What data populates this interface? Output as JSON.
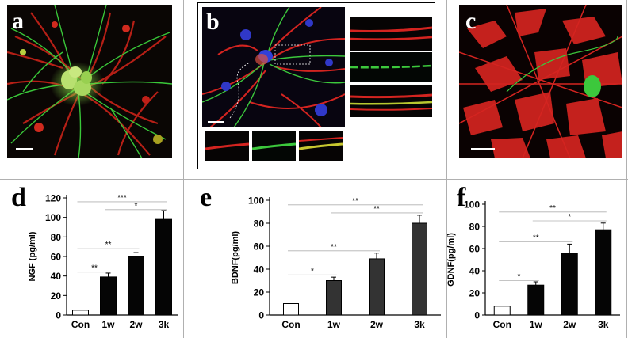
{
  "panels": {
    "a": {
      "letter": "a"
    },
    "b": {
      "letter": "b"
    },
    "c": {
      "letter": "c"
    }
  },
  "colors": {
    "neuron_green": "#3cc83c",
    "glia_red": "#e0201e",
    "nucleus_blue": "#3038d8",
    "bar_black": "#050505",
    "bar_grey": "#333333"
  },
  "chart_data": [
    {
      "letter": "d",
      "type": "bar",
      "ylabel": "NGF (pg/ml)",
      "categories": [
        "Con",
        "1w",
        "2w",
        "3k"
      ],
      "values": [
        5,
        39,
        60,
        98
      ],
      "errors": [
        0.5,
        4,
        4,
        9
      ],
      "ylim": [
        0,
        120
      ],
      "yticks": [
        0,
        20,
        40,
        60,
        80,
        100,
        120
      ],
      "bar_fill": [
        "#ffffff",
        "#050505",
        "#050505",
        "#050505"
      ],
      "significance": [
        {
          "from": 0,
          "to": 1,
          "label": "**"
        },
        {
          "from": 0,
          "to": 2,
          "label": "**"
        },
        {
          "from": 1,
          "to": 3,
          "label": "*"
        },
        {
          "from": 0,
          "to": 3,
          "label": "***"
        }
      ],
      "sig_levels": [
        44,
        68,
        108,
        116
      ]
    },
    {
      "letter": "e",
      "type": "bar",
      "ylabel": "BDNF(pg/ml)",
      "categories": [
        "Con",
        "1w",
        "2w",
        "3k"
      ],
      "values": [
        10,
        30,
        49,
        80
      ],
      "errors": [
        0.5,
        3,
        5,
        7
      ],
      "ylim": [
        0,
        100
      ],
      "yticks": [
        0,
        20,
        40,
        60,
        80,
        100
      ],
      "bar_fill": [
        "#ffffff",
        "#333333",
        "#333333",
        "#333333"
      ],
      "significance": [
        {
          "from": 0,
          "to": 1,
          "label": "*"
        },
        {
          "from": 0,
          "to": 2,
          "label": "**"
        },
        {
          "from": 1,
          "to": 3,
          "label": "**"
        },
        {
          "from": 0,
          "to": 3,
          "label": "**"
        }
      ],
      "sig_levels": [
        35,
        56,
        89,
        96
      ]
    },
    {
      "letter": "f",
      "type": "bar",
      "ylabel": "GDNF(pg/ml)",
      "categories": [
        "Con",
        "1w",
        "2w",
        "3k"
      ],
      "values": [
        8,
        27,
        56,
        77
      ],
      "errors": [
        0.5,
        3,
        8,
        6
      ],
      "ylim": [
        0,
        100
      ],
      "yticks": [
        0,
        20,
        40,
        60,
        80,
        100
      ],
      "bar_fill": [
        "#ffffff",
        "#050505",
        "#050505",
        "#050505"
      ],
      "significance": [
        {
          "from": 0,
          "to": 1,
          "label": "*"
        },
        {
          "from": 0,
          "to": 2,
          "label": "**"
        },
        {
          "from": 1,
          "to": 3,
          "label": "*"
        },
        {
          "from": 0,
          "to": 3,
          "label": "**"
        }
      ],
      "sig_levels": [
        31,
        66,
        85,
        93
      ]
    }
  ]
}
